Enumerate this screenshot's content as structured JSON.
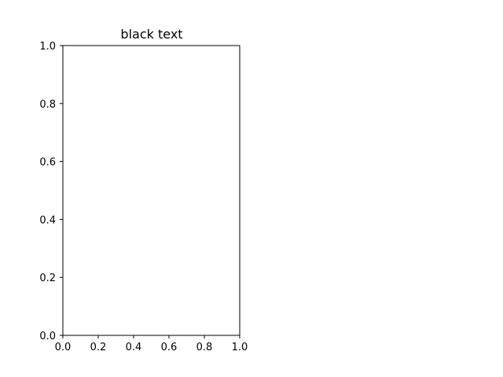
{
  "chart_data": {
    "type": "scatter",
    "title": "black text",
    "xlabel": "",
    "ylabel": "",
    "xlim": [
      0.0,
      1.0
    ],
    "ylim": [
      0.0,
      1.0
    ],
    "x_ticks": [
      0.0,
      0.2,
      0.4,
      0.6,
      0.8,
      1.0
    ],
    "y_ticks": [
      0.0,
      0.2,
      0.4,
      0.6,
      0.8,
      1.0
    ],
    "x_tick_labels": [
      "0.0",
      "0.2",
      "0.4",
      "0.6",
      "0.8",
      "1.0"
    ],
    "y_tick_labels": [
      "0.0",
      "0.2",
      "0.4",
      "0.6",
      "0.8",
      "1.0"
    ],
    "grid": false,
    "series": [],
    "colors": {
      "axes": "#000000",
      "title": "#000000",
      "background": "#ffffff"
    }
  }
}
